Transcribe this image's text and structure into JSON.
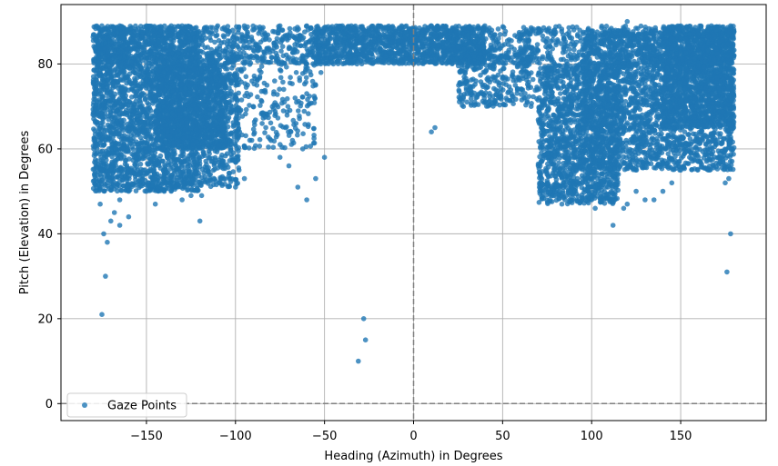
{
  "chart_data": {
    "type": "scatter",
    "title": "",
    "xlabel": "Heading (Azimuth) in Degrees",
    "ylabel": "Pitch (Elevation) in Degrees",
    "xlim": [
      -198,
      198
    ],
    "ylim": [
      -4,
      94
    ],
    "xticks": [
      -150,
      -100,
      -50,
      0,
      50,
      100,
      150
    ],
    "xtick_labels": [
      "−150",
      "−100",
      "−50",
      "0",
      "50",
      "100",
      "150"
    ],
    "yticks": [
      0,
      20,
      40,
      60,
      80
    ],
    "ytick_labels": [
      "0",
      "20",
      "40",
      "60",
      "80"
    ],
    "grid": true,
    "reference_lines": {
      "x": 0,
      "y": 0,
      "style": "dashed"
    },
    "legend": {
      "placement": "lower-left",
      "entries": [
        "Gaze Points"
      ]
    },
    "colors": {
      "series": "#1f77b4",
      "grid": "#b0b0b0",
      "refline": "#808080"
    },
    "series": [
      {
        "name": "Gaze Points",
        "points": [
          [
            -175,
            21
          ],
          [
            -173,
            30
          ],
          [
            -174,
            40
          ],
          [
            -172,
            38
          ],
          [
            -176,
            47
          ],
          [
            -170,
            43
          ],
          [
            -168,
            45
          ],
          [
            -165,
            42
          ],
          [
            -160,
            44
          ],
          [
            -165,
            48
          ],
          [
            -160,
            50
          ],
          [
            -150,
            50
          ],
          [
            -145,
            47
          ],
          [
            -140,
            50
          ],
          [
            -135,
            52
          ],
          [
            -130,
            48
          ],
          [
            -120,
            43
          ],
          [
            -125,
            49
          ],
          [
            -100,
            51
          ],
          [
            -95,
            53
          ],
          [
            -98,
            55
          ],
          [
            -102,
            58
          ],
          [
            -60,
            48
          ],
          [
            -65,
            51
          ],
          [
            -50,
            58
          ],
          [
            -28,
            20
          ],
          [
            -27,
            15
          ],
          [
            -31,
            10
          ],
          [
            -70,
            56
          ],
          [
            -75,
            58
          ],
          [
            -80,
            62
          ],
          [
            -85,
            66
          ],
          [
            -90,
            70
          ],
          [
            -68,
            62
          ],
          [
            -66,
            66
          ],
          [
            -88,
            75
          ],
          [
            -78,
            76
          ],
          [
            -60,
            73
          ],
          [
            -55,
            75
          ],
          [
            -52,
            78
          ],
          [
            -45,
            80
          ],
          [
            -40,
            82
          ],
          [
            -35,
            84
          ],
          [
            -30,
            86
          ],
          [
            -25,
            87
          ],
          [
            -20,
            88
          ],
          [
            -15,
            88
          ],
          [
            -10,
            87
          ],
          [
            -5,
            86
          ],
          [
            0,
            85
          ],
          [
            5,
            84
          ],
          [
            10,
            86
          ],
          [
            15,
            87
          ],
          [
            20,
            86
          ],
          [
            25,
            84
          ],
          [
            30,
            82
          ],
          [
            35,
            80
          ],
          [
            40,
            78
          ],
          [
            45,
            80
          ],
          [
            50,
            82
          ],
          [
            55,
            84
          ],
          [
            60,
            86
          ],
          [
            65,
            87
          ],
          [
            70,
            88
          ],
          [
            75,
            86
          ],
          [
            80,
            85
          ],
          [
            85,
            84
          ],
          [
            12,
            65
          ],
          [
            10,
            64
          ],
          [
            28,
            70
          ],
          [
            30,
            73
          ],
          [
            35,
            76
          ],
          [
            40,
            75
          ],
          [
            55,
            73
          ],
          [
            62,
            72
          ],
          [
            66,
            70
          ],
          [
            70,
            56
          ],
          [
            72,
            57
          ],
          [
            75,
            59
          ],
          [
            78,
            60
          ],
          [
            80,
            52
          ],
          [
            82,
            49
          ],
          [
            85,
            48
          ],
          [
            88,
            50
          ],
          [
            92,
            53
          ],
          [
            95,
            52
          ],
          [
            98,
            50
          ],
          [
            100,
            48
          ],
          [
            102,
            46
          ],
          [
            105,
            48
          ],
          [
            108,
            51
          ],
          [
            112,
            42
          ],
          [
            115,
            54
          ],
          [
            118,
            46
          ],
          [
            120,
            47
          ],
          [
            125,
            50
          ],
          [
            130,
            48
          ],
          [
            135,
            48
          ],
          [
            140,
            50
          ],
          [
            145,
            52
          ],
          [
            150,
            55
          ],
          [
            155,
            58
          ],
          [
            160,
            62
          ],
          [
            165,
            60
          ],
          [
            170,
            61
          ],
          [
            175,
            52
          ],
          [
            177,
            53
          ],
          [
            176,
            31
          ],
          [
            178,
            40
          ],
          [
            172,
            59
          ],
          [
            168,
            63
          ],
          [
            105,
            70
          ],
          [
            110,
            74
          ],
          [
            115,
            76
          ],
          [
            120,
            78
          ],
          [
            125,
            80
          ],
          [
            130,
            82
          ],
          [
            135,
            84
          ],
          [
            140,
            85
          ],
          [
            145,
            86
          ],
          [
            150,
            86
          ],
          [
            155,
            87
          ],
          [
            160,
            87
          ],
          [
            165,
            88
          ],
          [
            170,
            88
          ],
          [
            175,
            88
          ],
          [
            178,
            89
          ],
          [
            120,
            90
          ],
          [
            150,
            89
          ],
          [
            -175,
            89
          ],
          [
            -165,
            89
          ],
          [
            -150,
            89
          ],
          [
            -130,
            89
          ],
          [
            -110,
            89
          ],
          [
            -95,
            89
          ],
          [
            -75,
            89
          ],
          [
            -60,
            89
          ],
          [
            -40,
            89
          ],
          [
            -20,
            89
          ],
          [
            10,
            89
          ],
          [
            40,
            89
          ],
          [
            90,
            88
          ],
          [
            -178,
            51
          ],
          [
            -176,
            54
          ],
          [
            -119,
            49
          ],
          [
            -55,
            53
          ],
          [
            -72,
            65
          ],
          [
            -82,
            68
          ]
        ]
      }
    ]
  },
  "dense_regions": [
    {
      "xmin": -180,
      "xmax": -120,
      "ymin": 50,
      "ymax": 89,
      "count": 2600
    },
    {
      "xmin": -145,
      "xmax": -105,
      "ymin": 60,
      "ymax": 80,
      "count": 900
    },
    {
      "xmin": -120,
      "xmax": -98,
      "ymin": 51,
      "ymax": 82,
      "count": 500
    },
    {
      "xmin": -100,
      "xmax": -55,
      "ymin": 60,
      "ymax": 82,
      "count": 220
    },
    {
      "xmin": -180,
      "xmax": 180,
      "ymin": 80,
      "ymax": 89,
      "count": 1700
    },
    {
      "xmin": -55,
      "xmax": 40,
      "ymin": 80,
      "ymax": 89,
      "count": 900
    },
    {
      "xmin": 25,
      "xmax": 70,
      "ymin": 70,
      "ymax": 84,
      "count": 350
    },
    {
      "xmin": 70,
      "xmax": 115,
      "ymin": 47,
      "ymax": 80,
      "count": 1400
    },
    {
      "xmin": 95,
      "xmax": 180,
      "ymin": 55,
      "ymax": 88,
      "count": 2400
    },
    {
      "xmin": 140,
      "xmax": 180,
      "ymin": 65,
      "ymax": 89,
      "count": 1100
    }
  ]
}
